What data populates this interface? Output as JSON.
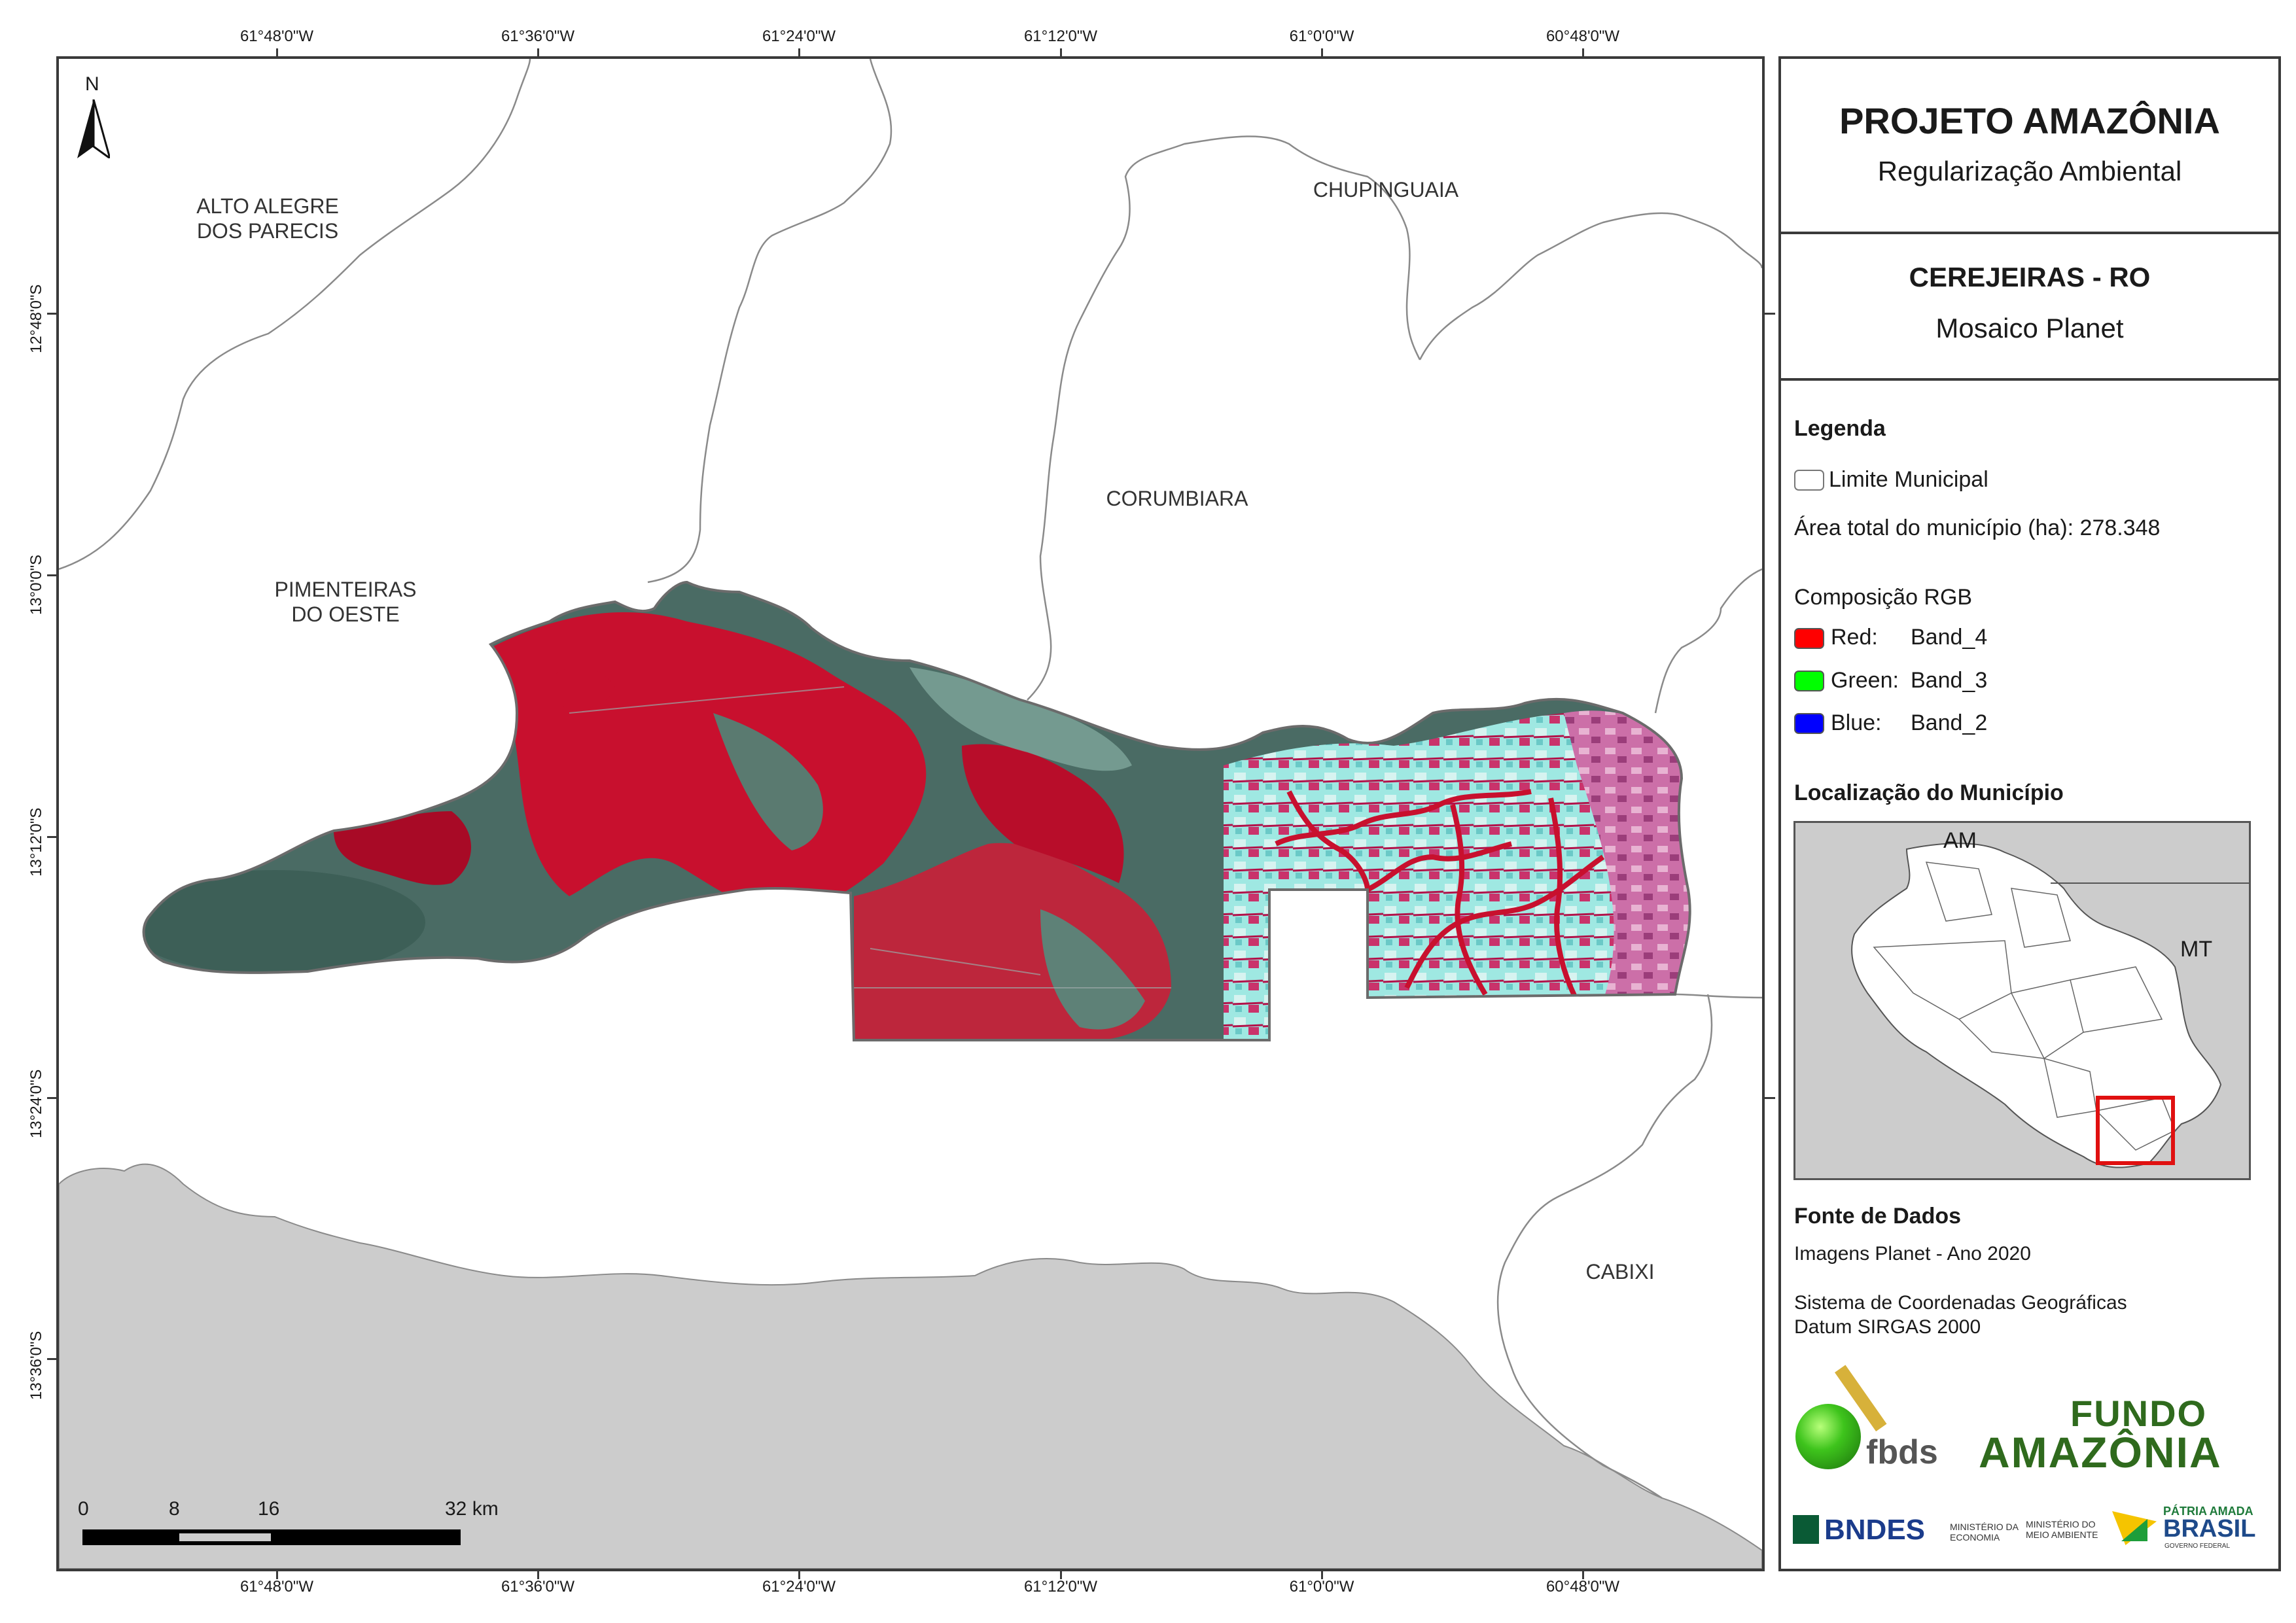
{
  "coords": {
    "longitudes": [
      "61°48'0\"W",
      "61°36'0\"W",
      "61°24'0\"W",
      "61°12'0\"W",
      "61°0'0\"W",
      "60°48'0\"W"
    ],
    "latitudes": [
      "12°48'0\"S",
      "13°0'0\"S",
      "13°12'0\"S",
      "13°24'0\"S",
      "13°36'0\"S"
    ]
  },
  "north_arrow": "N",
  "municipalities": {
    "alto_alegre": [
      "ALTO ALEGRE",
      "DOS PARECIS"
    ],
    "chupinguaia": [
      "CHUPINGUAIA"
    ],
    "corumbiara": [
      "CORUMBIARA"
    ],
    "pimenteiras": [
      "PIMENTEIRAS",
      "DO OESTE"
    ],
    "cabixi": [
      "CABIXI"
    ]
  },
  "scale_bar": {
    "labels": [
      "0",
      "8",
      "16",
      "32 km"
    ]
  },
  "panel": {
    "title": "PROJETO AMAZÔNIA",
    "subtitle": "Regularização Ambiental",
    "place": "CEREJEIRAS - RO",
    "product": "Mosaico Planet",
    "legend_title": "Legenda",
    "limit_label": "Limite Municipal",
    "area_label": "Área total do município (ha): 278.348",
    "rgb_title": "Composição RGB",
    "bands": [
      {
        "channel": "Red:",
        "band": "Band_4",
        "color": "#ff0000"
      },
      {
        "channel": "Green:",
        "band": "Band_3",
        "color": "#00ff00"
      },
      {
        "channel": "Blue:",
        "band": "Band_2",
        "color": "#0000ff"
      }
    ],
    "location_title": "Localização do Município",
    "inset_labels": {
      "am": "AM",
      "mt": "MT"
    },
    "source_title": "Fonte de Dados",
    "source_lines": [
      "Imagens Planet - Ano 2020",
      "Sistema de Coordenadas Geográficas",
      "Datum SIRGAS 2000"
    ]
  },
  "logos": {
    "fbds": "fbds",
    "fundo_1": "FUNDO",
    "fundo_2": "AMAZÔNIA",
    "bndes": "BNDES",
    "min_economia": [
      "MINISTÉRIO DA",
      "ECONOMIA"
    ],
    "min_ambiente": [
      "MINISTÉRIO DO",
      "MEIO AMBIENTE"
    ],
    "patria_1": "PÁTRIA AMADA",
    "patria_2": "BRASIL",
    "patria_3": "GOVERNO FEDERAL"
  },
  "colors": {
    "frame": "#3a3a3a",
    "bolivia_gray": "#cccccc",
    "highlight_red": "#e01010",
    "imagery_red": "#c8102e",
    "imagery_teal": "#4a6b64",
    "imagery_cyan": "#8fe6e0"
  }
}
